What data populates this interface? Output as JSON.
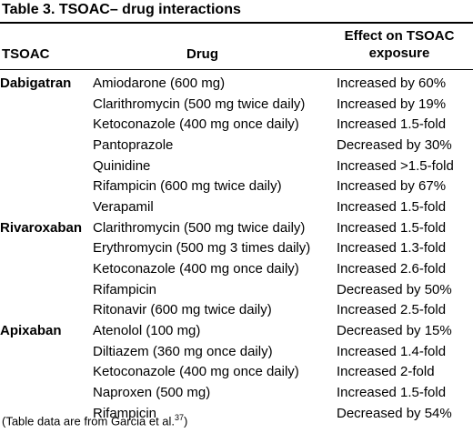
{
  "title": "Table 3.   TSOAC– drug interactions",
  "headers": {
    "col1": "TSOAC",
    "col2": "Drug",
    "col3": "Effect on TSOAC exposure"
  },
  "rows": [
    {
      "tsoac": "Dabigatran",
      "drug": "Amiodarone (600 mg)",
      "effect": "Increased by 60%"
    },
    {
      "tsoac": "",
      "drug": "Clarithromycin (500 mg twice daily)",
      "effect": "Increased by 19%"
    },
    {
      "tsoac": "",
      "drug": "Ketoconazole (400 mg once daily)",
      "effect": "Increased 1.5-fold"
    },
    {
      "tsoac": "",
      "drug": "Pantoprazole",
      "effect": "Decreased by 30%"
    },
    {
      "tsoac": "",
      "drug": "Quinidine",
      "effect": "Increased >1.5-fold"
    },
    {
      "tsoac": "",
      "drug": "Rifampicin (600 mg twice daily)",
      "effect": "Increased by 67%"
    },
    {
      "tsoac": "",
      "drug": "Verapamil",
      "effect": "Increased 1.5-fold"
    },
    {
      "tsoac": "Rivaroxaban",
      "drug": "Clarithromycin (500 mg twice daily)",
      "effect": "Increased 1.5-fold"
    },
    {
      "tsoac": "",
      "drug": "Erythromycin (500 mg 3 times daily)",
      "effect": "Increased 1.3-fold"
    },
    {
      "tsoac": "",
      "drug": "Ketoconazole (400 mg once daily)",
      "effect": "Increased 2.6-fold"
    },
    {
      "tsoac": "",
      "drug": "Rifampicin",
      "effect": "Decreased by 50%"
    },
    {
      "tsoac": "",
      "drug": "Ritonavir (600 mg twice daily)",
      "effect": "Increased 2.5-fold"
    },
    {
      "tsoac": "Apixaban",
      "drug": "Atenolol (100 mg)",
      "effect": "Decreased by 15%"
    },
    {
      "tsoac": "",
      "drug": "Diltiazem (360 mg once daily)",
      "effect": "Increased 1.4-fold"
    },
    {
      "tsoac": "",
      "drug": "Ketoconazole (400 mg once daily)",
      "effect": "Increased 2-fold"
    },
    {
      "tsoac": "",
      "drug": "Naproxen (500 mg)",
      "effect": "Increased 1.5-fold"
    },
    {
      "tsoac": "",
      "drug": "Rifampicin",
      "effect": "Decreased by 54%"
    }
  ],
  "footnote": {
    "text": "(Table data are from Garcia et al.",
    "ref": "37",
    "close": ")"
  }
}
